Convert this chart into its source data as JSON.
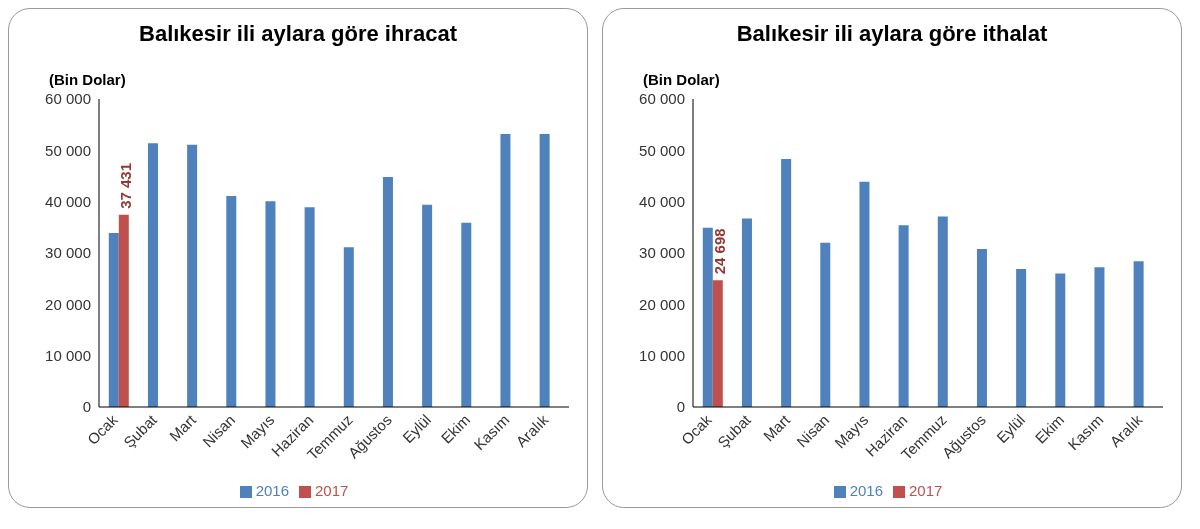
{
  "chart_data": [
    {
      "type": "bar",
      "title": "Balıkesir ili aylara göre ihracat",
      "ylabel": "(Bin Dolar)",
      "categories": [
        "Ocak",
        "Şubat",
        "Mart",
        "Nisan",
        "Mayıs",
        "Haziran",
        "Temmuz",
        "Ağustos",
        "Eylül",
        "Ekim",
        "Kasım",
        "Aralık"
      ],
      "series": [
        {
          "name": "2016",
          "color": "#4f81bd",
          "values": [
            33900,
            51400,
            51100,
            41100,
            40100,
            38900,
            31100,
            44800,
            39400,
            35900,
            53200,
            53200
          ]
        },
        {
          "name": "2017",
          "color": "#c0504d",
          "values": [
            37431,
            null,
            null,
            null,
            null,
            null,
            null,
            null,
            null,
            null,
            null,
            null
          ],
          "value_labels": [
            "37 431",
            null,
            null,
            null,
            null,
            null,
            null,
            null,
            null,
            null,
            null,
            null
          ]
        }
      ],
      "ylim": [
        0,
        60000
      ],
      "yticks": [
        0,
        {
          "value": 10000,
          "label": "10 000"
        },
        {
          "value": 20000,
          "label": "20 000"
        },
        {
          "value": 30000,
          "label": "30 000"
        },
        {
          "value": 40000,
          "label": "40 000"
        },
        {
          "value": 50000,
          "label": "50 000"
        },
        {
          "value": 60000,
          "label": "60 000"
        }
      ],
      "grid": false,
      "legend": "bottom"
    },
    {
      "type": "bar",
      "title": "Balıkesir ili aylara göre ithalat",
      "ylabel": "(Bin Dolar)",
      "categories": [
        "Ocak",
        "Şubat",
        "Mart",
        "Nisan",
        "Mayıs",
        "Haziran",
        "Temmuz",
        "Ağustos",
        "Eylül",
        "Ekim",
        "Kasım",
        "Aralık"
      ],
      "series": [
        {
          "name": "2016",
          "color": "#4f81bd",
          "values": [
            34900,
            36700,
            48300,
            32000,
            43900,
            35400,
            37100,
            30800,
            26900,
            26000,
            27200,
            28400
          ]
        },
        {
          "name": "2017",
          "color": "#c0504d",
          "values": [
            24698,
            null,
            null,
            null,
            null,
            null,
            null,
            null,
            null,
            null,
            null,
            null
          ],
          "value_labels": [
            "24 698",
            null,
            null,
            null,
            null,
            null,
            null,
            null,
            null,
            null,
            null,
            null
          ]
        }
      ],
      "ylim": [
        0,
        60000
      ],
      "yticks": [
        0,
        {
          "value": 10000,
          "label": "10 000"
        },
        {
          "value": 20000,
          "label": "20 000"
        },
        {
          "value": 30000,
          "label": "30 000"
        },
        {
          "value": 40000,
          "label": "40 000"
        },
        {
          "value": 50000,
          "label": "50 000"
        },
        {
          "value": 60000,
          "label": "60 000"
        }
      ],
      "grid": false,
      "legend": "bottom"
    }
  ]
}
